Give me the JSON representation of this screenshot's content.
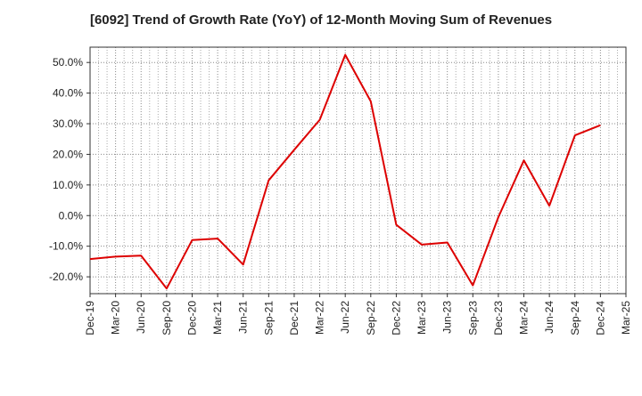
{
  "chart_data": {
    "type": "line",
    "title": "[6092]  Trend of Growth Rate (YoY) of 12-Month Moving Sum of Revenues",
    "xlabel": "",
    "ylabel": "",
    "ylim": [
      -25.5,
      55
    ],
    "yticks": [
      50,
      40,
      30,
      20,
      10,
      0,
      -10,
      -20
    ],
    "ytick_labels": [
      "50.0%",
      "40.0%",
      "30.0%",
      "20.0%",
      "10.0%",
      "0.0%",
      "-10.0%",
      "-20.0%"
    ],
    "x_categories": [
      "Dec-19",
      "Mar-20",
      "Jun-20",
      "Sep-20",
      "Dec-20",
      "Mar-21",
      "Jun-21",
      "Sep-21",
      "Dec-21",
      "Mar-22",
      "Jun-22",
      "Sep-22",
      "Dec-22",
      "Mar-23",
      "Jun-23",
      "Sep-23",
      "Dec-23",
      "Mar-24",
      "Jun-24",
      "Sep-24",
      "Dec-24",
      "Mar-25"
    ],
    "grid": true,
    "legend": "none",
    "line_color": "#dd0000",
    "series": [
      {
        "values": [
          -14.2,
          -13.4,
          -13.1,
          -23.8,
          -8.0,
          -7.5,
          -16.0,
          11.5,
          21.5,
          31.3,
          52.5,
          37.3,
          -3.0,
          -9.5,
          -8.8,
          -22.8,
          -0.5,
          18.0,
          3.2,
          26.2,
          29.5,
          null
        ]
      }
    ]
  }
}
